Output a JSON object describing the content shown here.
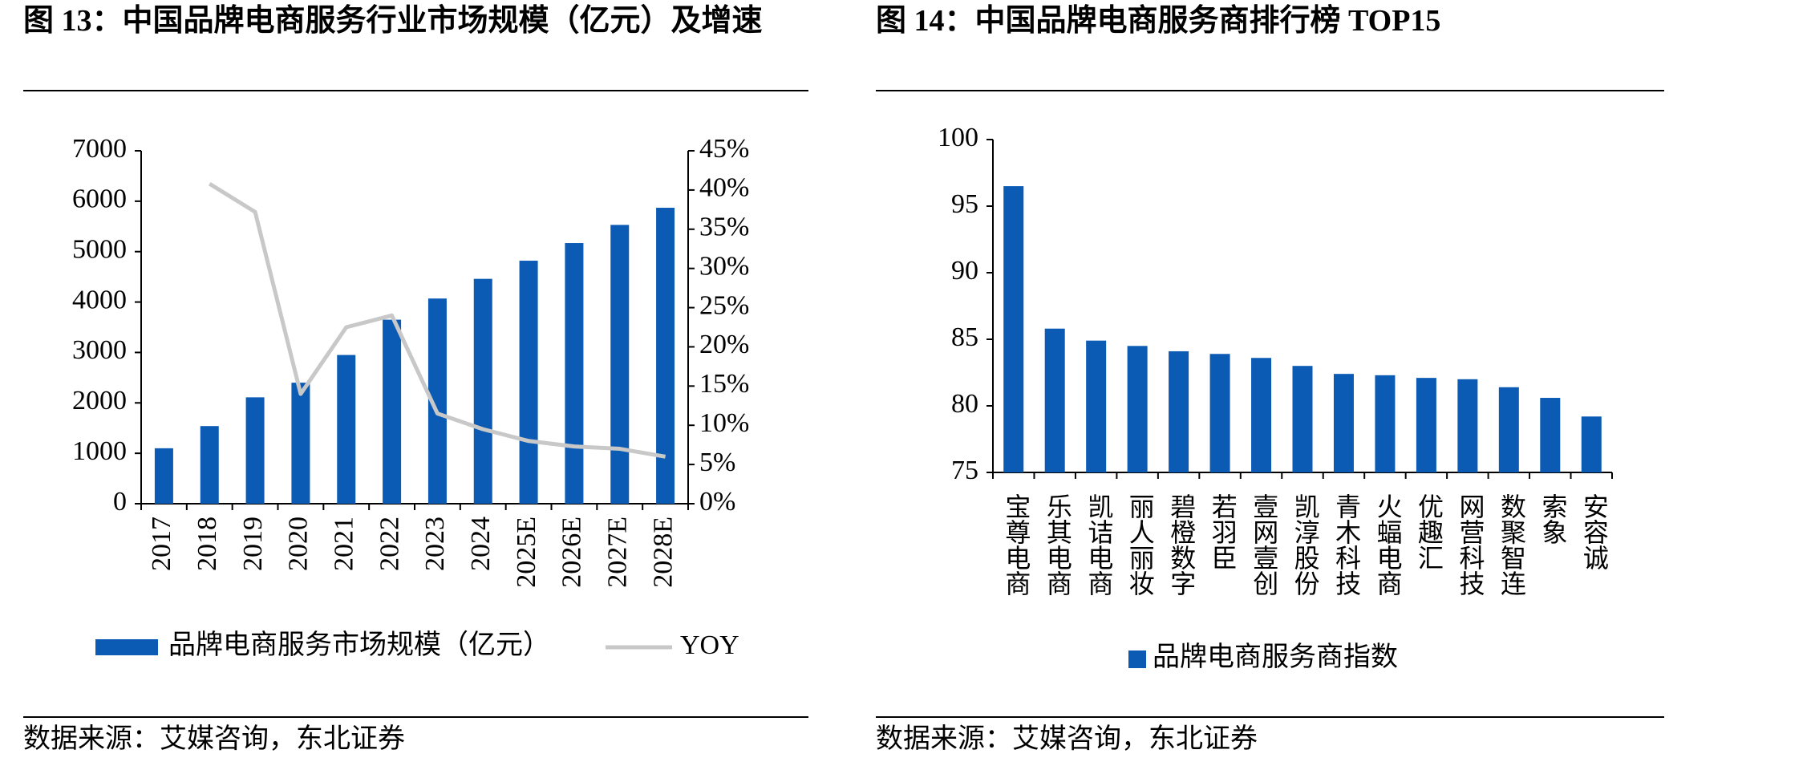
{
  "chart_data": [
    {
      "type": "bar",
      "title": "图 13：中国品牌电商服务行业市场规模（亿元）及增速",
      "source": "数据来源：艾媒咨询，东北证券",
      "categories": [
        "2017",
        "2018",
        "2019",
        "2020",
        "2021",
        "2022",
        "2023",
        "2024",
        "2025E",
        "2026E",
        "2027E",
        "2028E"
      ],
      "series": [
        {
          "name": "品牌电商服务市场规模（亿元）",
          "color": "#0b5bb5",
          "values": [
            1100,
            1540,
            2110,
            2400,
            2950,
            3650,
            4070,
            4460,
            4820,
            5170,
            5530,
            5870
          ]
        },
        {
          "name": "YOY",
          "type": "line",
          "axis": "y2",
          "color": "#c8c8c8",
          "values": [
            null,
            40.8,
            37.2,
            14,
            22.5,
            24,
            11.5,
            9.5,
            8,
            7.3,
            7,
            6
          ]
        }
      ],
      "ylim": [
        0,
        7000
      ],
      "yticks": [
        0,
        1000,
        2000,
        3000,
        4000,
        5000,
        6000,
        7000
      ],
      "y2lim": [
        0,
        45
      ],
      "y2ticks": [
        {
          "value": 0,
          "label": "0%"
        },
        {
          "value": 5,
          "label": "5%"
        },
        {
          "value": 10,
          "label": "10%"
        },
        {
          "value": 15,
          "label": "15%"
        },
        {
          "value": 20,
          "label": "20%"
        },
        {
          "value": 25,
          "label": "25%"
        },
        {
          "value": 30,
          "label": "30%"
        },
        {
          "value": 35,
          "label": "35%"
        },
        {
          "value": 40,
          "label": "40%"
        },
        {
          "value": 45,
          "label": "45%"
        }
      ],
      "x_label_style": "rotated"
    },
    {
      "type": "bar",
      "title": "图 14：中国品牌电商服务商排行榜 TOP15",
      "source": "数据来源：艾媒咨询，东北证券",
      "categories": [
        "宝尊电商",
        "乐其电商",
        "凯诘电商",
        "丽人丽妆",
        "碧橙数字",
        "若羽臣",
        "壹网壹创",
        "凯淳股份",
        "青木科技",
        "火蝠电商",
        "优趣汇",
        "网营科技",
        "数聚智连",
        "索象",
        "安容诚"
      ],
      "series": [
        {
          "name": "品牌电商服务商指数",
          "color": "#0b5bb5",
          "values": [
            96.5,
            85.8,
            84.9,
            84.5,
            84.1,
            83.9,
            83.6,
            83.0,
            82.4,
            82.3,
            82.1,
            82.0,
            81.4,
            80.6,
            79.2
          ]
        }
      ],
      "ylim": [
        75,
        100
      ],
      "yticks": [
        75,
        80,
        85,
        90,
        95,
        100
      ],
      "x_label_style": "vertical"
    }
  ]
}
